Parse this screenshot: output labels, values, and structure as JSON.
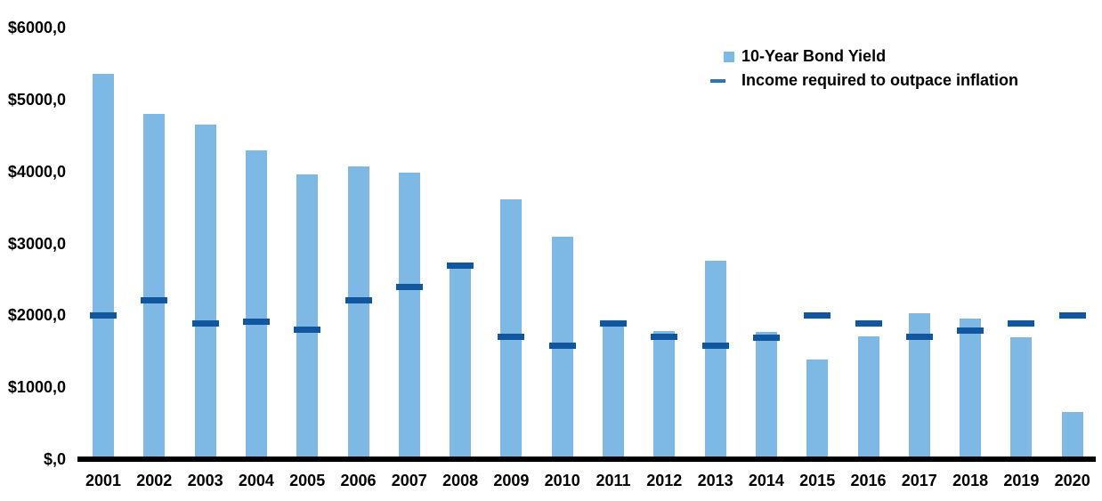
{
  "chart_data": {
    "type": "bar",
    "title": "",
    "xlabel": "",
    "ylabel": "",
    "categories": [
      "2001",
      "2002",
      "2003",
      "2004",
      "2005",
      "2006",
      "2007",
      "2008",
      "2009",
      "2010",
      "2011",
      "2012",
      "2013",
      "2014",
      "2015",
      "2016",
      "2017",
      "2018",
      "2019",
      "2020"
    ],
    "series": [
      {
        "name": "10-Year Bond Yield",
        "type": "bar",
        "color": "#7EB8E5",
        "values": [
          5360,
          4800,
          4650,
          4300,
          3960,
          4070,
          3990,
          2660,
          3620,
          3090,
          1870,
          1780,
          2760,
          1770,
          1380,
          1710,
          2030,
          1950,
          1700,
          660
        ]
      },
      {
        "name": "Income required to outpace inflation",
        "type": "dash",
        "color": "#10579F",
        "values": [
          2000,
          2210,
          1890,
          1910,
          1800,
          2210,
          2390,
          2690,
          1700,
          1580,
          1890,
          1700,
          1580,
          1690,
          2000,
          1890,
          1700,
          1790,
          1890,
          2000
        ]
      }
    ],
    "ylim": [
      0,
      6000
    ],
    "y_ticks": [
      {
        "value": 6000,
        "label": "$6000,0"
      },
      {
        "value": 5000,
        "label": "$5000,0"
      },
      {
        "value": 4000,
        "label": "$4000,0"
      },
      {
        "value": 3000,
        "label": "$3000,0"
      },
      {
        "value": 2000,
        "label": "$2000,0"
      },
      {
        "value": 1000,
        "label": "$1000,0"
      },
      {
        "value": 0,
        "label": "$,0"
      }
    ],
    "grid": false,
    "legend_position": "top-right"
  },
  "legend": {
    "items": [
      {
        "label": "10-Year Bond Yield",
        "marker": "square",
        "color": "#7EB8E5"
      },
      {
        "label": "Income required to outpace inflation",
        "marker": "dash",
        "color": "#2E75B6"
      }
    ]
  },
  "colors": {
    "bar": "#7EB8E5",
    "dash": "#10579F",
    "legend_dash": "#2E75B6",
    "axis": "#000000",
    "text": "#000000",
    "background": "#FFFFFF"
  }
}
